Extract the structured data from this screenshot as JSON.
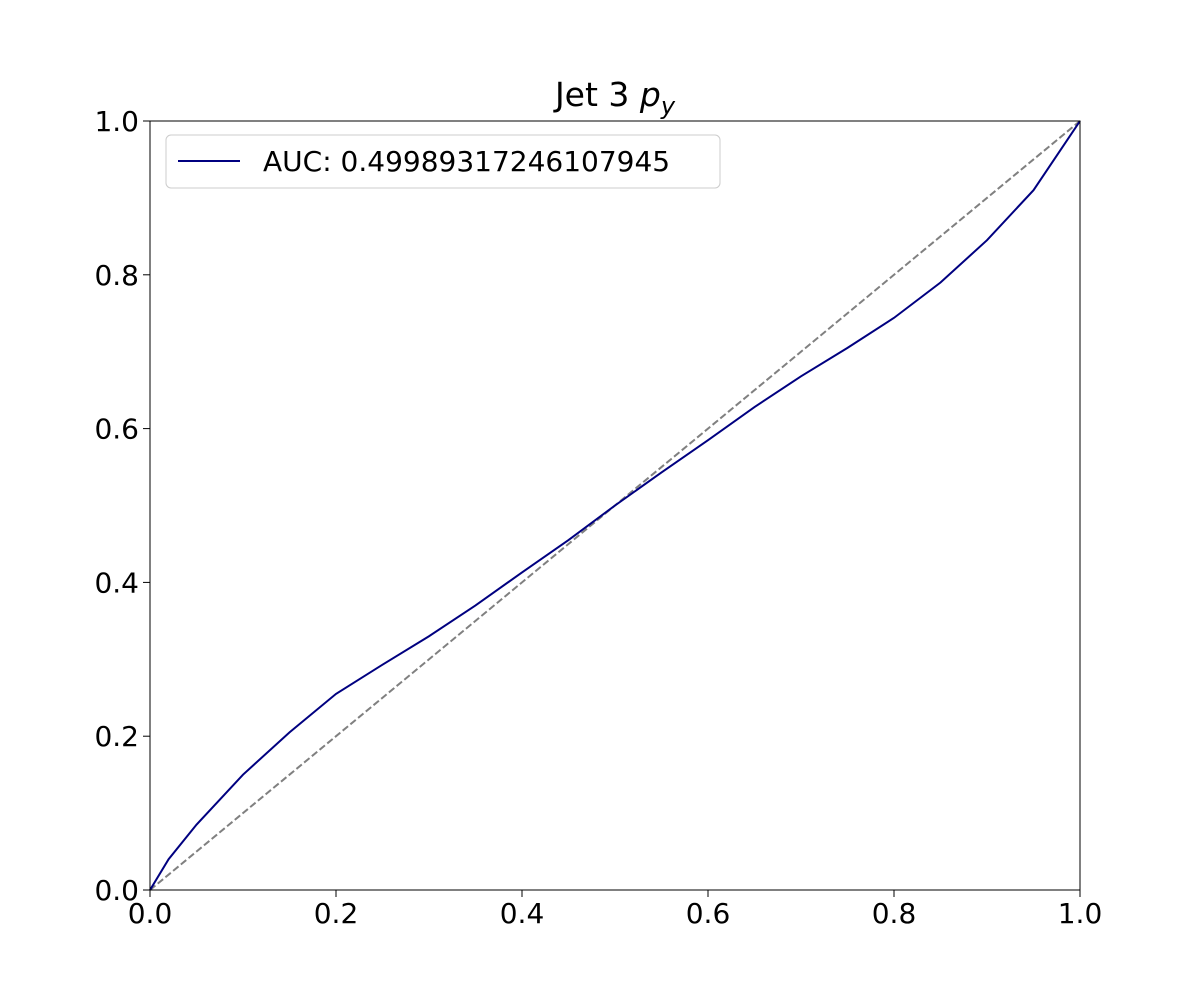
{
  "chart_data": {
    "type": "line",
    "title": "Jet 3",
    "title_symbol": "p",
    "title_subscript": "y",
    "x": [
      0,
      0.02,
      0.05,
      0.1,
      0.15,
      0.2,
      0.25,
      0.3,
      0.35,
      0.4,
      0.45,
      0.5,
      0.55,
      0.6,
      0.65,
      0.7,
      0.75,
      0.8,
      0.85,
      0.9,
      0.95,
      1.0
    ],
    "series": [
      {
        "name": "AUC: 0.49989317246107945",
        "color": "#000080",
        "values": [
          0,
          0.04,
          0.085,
          0.15,
          0.205,
          0.255,
          0.293,
          0.33,
          0.37,
          0.413,
          0.455,
          0.5,
          0.543,
          0.585,
          0.628,
          0.668,
          0.705,
          0.744,
          0.79,
          0.845,
          0.91,
          1.0
        ]
      }
    ],
    "reference_line": {
      "x": [
        0,
        1
      ],
      "values": [
        0,
        1
      ],
      "color": "#808080",
      "style": "dashed"
    },
    "xlim": [
      0,
      1
    ],
    "ylim": [
      0,
      1
    ],
    "xticks": [
      {
        "value": 0,
        "label": "0.0"
      },
      0.2,
      0.4,
      0.6,
      0.8,
      {
        "value": 1,
        "label": "1.0"
      }
    ],
    "yticks": [
      {
        "value": 0,
        "label": "0.0"
      },
      0.2,
      0.4,
      0.6,
      0.8,
      {
        "value": 1,
        "label": "1.0"
      }
    ],
    "legend": "upper left",
    "grid": false
  }
}
